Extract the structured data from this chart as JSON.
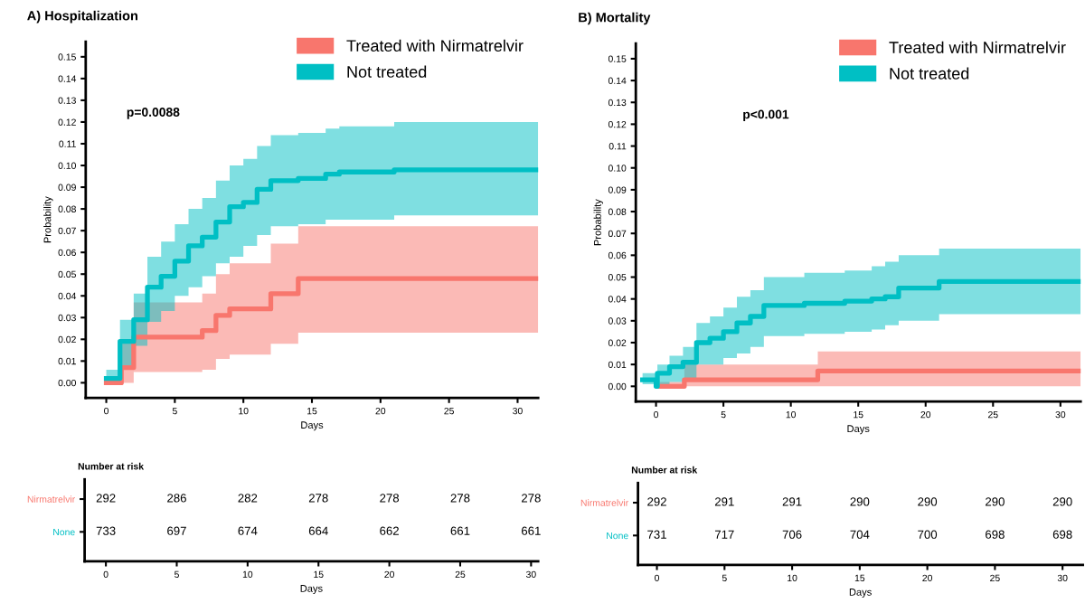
{
  "chart_data": [
    {
      "type": "step",
      "title": "A) Hospitalization",
      "xlabel": "Days",
      "ylabel": "Probability",
      "annotations": [
        "p=0.0088"
      ],
      "legend": "top right",
      "xlim": [
        -1.5,
        31.5
      ],
      "xticks": [
        0,
        5,
        10,
        15,
        20,
        25,
        30
      ],
      "ylim": [
        -0.007,
        0.157
      ],
      "yticks": [
        {
          "value": 0,
          "label": "0.00"
        },
        {
          "value": 0.01,
          "label": "0.01"
        },
        {
          "value": 0.02,
          "label": "0.02"
        },
        {
          "value": 0.03,
          "label": "0.03"
        },
        {
          "value": 0.04,
          "label": "0.04"
        },
        {
          "value": 0.05,
          "label": "0.05"
        },
        {
          "value": 0.06,
          "label": "0.06"
        },
        {
          "value": 0.07,
          "label": "0.07"
        },
        {
          "value": 0.08,
          "label": "0.08"
        },
        {
          "value": 0.09,
          "label": "0.09"
        },
        {
          "value": 0.1,
          "label": "0.10"
        },
        {
          "value": 0.11,
          "label": "0.11"
        },
        {
          "value": 0.12,
          "label": "0.12"
        },
        {
          "value": 0.13,
          "label": "0.13"
        },
        {
          "value": 0.14,
          "label": "0.14"
        },
        {
          "value": 0.15,
          "label": "0.15"
        }
      ],
      "series": [
        {
          "name": "Treated with Nirmatrelvir",
          "color": "#f8766d",
          "x": [
            0,
            1.1,
            2,
            7,
            8,
            9,
            12,
            14,
            31.5
          ],
          "values": [
            0,
            0.007,
            0.021,
            0.024,
            0.031,
            0.034,
            0.041,
            0.048,
            0.048
          ],
          "lower": [
            0,
            0,
            0.005,
            0.006,
            0.011,
            0.013,
            0.018,
            0.023,
            0.023
          ],
          "upper": [
            0.001,
            0.019,
            0.037,
            0.041,
            0.05,
            0.055,
            0.064,
            0.072,
            0.072
          ]
        },
        {
          "name": "Not treated",
          "color": "#00bfc4",
          "x": [
            0,
            1,
            2,
            3,
            4,
            5,
            6,
            7,
            8,
            9,
            10,
            11,
            12,
            14,
            16,
            17,
            21,
            31.5
          ],
          "values": [
            0.002,
            0.019,
            0.029,
            0.044,
            0.049,
            0.056,
            0.063,
            0.067,
            0.074,
            0.081,
            0.083,
            0.089,
            0.093,
            0.094,
            0.096,
            0.097,
            0.098,
            0.098
          ],
          "lower": [
            0,
            0.008,
            0.017,
            0.028,
            0.033,
            0.04,
            0.044,
            0.049,
            0.055,
            0.058,
            0.063,
            0.068,
            0.072,
            0.073,
            0.075,
            0.075,
            0.077,
            0.077
          ],
          "upper": [
            0.006,
            0.029,
            0.041,
            0.058,
            0.065,
            0.073,
            0.08,
            0.085,
            0.093,
            0.1,
            0.103,
            0.109,
            0.114,
            0.115,
            0.117,
            0.118,
            0.12,
            0.12
          ]
        }
      ]
    },
    {
      "type": "step",
      "title": "B) Mortality",
      "xlabel": "Days",
      "ylabel": "Probability",
      "annotations": [
        "p<0.001"
      ],
      "legend": "top right",
      "xlim": [
        -1.5,
        31.5
      ],
      "xticks": [
        0,
        5,
        10,
        15,
        20,
        25,
        30
      ],
      "ylim": [
        -0.007,
        0.157
      ],
      "yticks": [
        {
          "value": 0,
          "label": "0.00"
        },
        {
          "value": 0.01,
          "label": "0.01"
        },
        {
          "value": 0.02,
          "label": "0.02"
        },
        {
          "value": 0.03,
          "label": "0.03"
        },
        {
          "value": 0.04,
          "label": "0.04"
        },
        {
          "value": 0.05,
          "label": "0.05"
        },
        {
          "value": 0.06,
          "label": "0.06"
        },
        {
          "value": 0.07,
          "label": "0.07"
        },
        {
          "value": 0.08,
          "label": "0.08"
        },
        {
          "value": 0.09,
          "label": "0.09"
        },
        {
          "value": 0.1,
          "label": "0.10"
        },
        {
          "value": 0.11,
          "label": "0.11"
        },
        {
          "value": 0.12,
          "label": "0.12"
        },
        {
          "value": 0.13,
          "label": "0.13"
        },
        {
          "value": 0.14,
          "label": "0.14"
        },
        {
          "value": 0.15,
          "label": "0.15"
        }
      ],
      "series": [
        {
          "name": "Treated with Nirmatrelvir",
          "color": "#f8766d",
          "x": [
            0.25,
            2.1,
            12,
            31.5
          ],
          "values": [
            0,
            0.003,
            0.007,
            0.007
          ],
          "lower": [
            0,
            0,
            0,
            0
          ],
          "upper": [
            0.002,
            0.01,
            0.016,
            0.016
          ]
        },
        {
          "name": "Not treated",
          "color": "#00bfc4",
          "x": [
            -1,
            0,
            0.1,
            1,
            2,
            3,
            4,
            5,
            6,
            7,
            8,
            11,
            14,
            16,
            17,
            18,
            21,
            31.5
          ],
          "values": [
            0.003,
            0,
            0.006,
            0.009,
            0.011,
            0.02,
            0.022,
            0.025,
            0.029,
            0.032,
            0.037,
            0.038,
            0.039,
            0.04,
            0.041,
            0.045,
            0.048,
            0.048
          ],
          "lower": [
            0.001,
            0,
            0,
            0.002,
            0.003,
            0.01,
            0.01,
            0.013,
            0.015,
            0.018,
            0.023,
            0.024,
            0.025,
            0.026,
            0.028,
            0.03,
            0.033,
            0.033
          ],
          "upper": [
            0.006,
            0.006,
            0.01,
            0.014,
            0.018,
            0.029,
            0.032,
            0.036,
            0.041,
            0.044,
            0.05,
            0.052,
            0.053,
            0.055,
            0.057,
            0.06,
            0.063,
            0.063
          ]
        }
      ]
    },
    {
      "type": "heatmap",
      "title": "Number at risk",
      "xlabel": "Days",
      "data_labels": true,
      "categories": [
        "0",
        "5",
        "10",
        "15",
        "20",
        "25",
        "30"
      ],
      "y_categories": [
        "Nirmatrelvir",
        "None"
      ],
      "cells": [
        [
          292,
          286,
          282,
          278,
          278,
          278,
          278
        ],
        [
          733,
          697,
          674,
          664,
          662,
          661,
          661
        ]
      ]
    },
    {
      "type": "heatmap",
      "title": "Number at risk",
      "xlabel": "Days",
      "data_labels": true,
      "categories": [
        "0",
        "5",
        "10",
        "15",
        "20",
        "25",
        "30"
      ],
      "y_categories": [
        "Nirmatrelvir",
        "None"
      ],
      "cells": [
        [
          292,
          291,
          291,
          290,
          290,
          290,
          290
        ],
        [
          731,
          717,
          706,
          704,
          700,
          698,
          698
        ]
      ]
    }
  ]
}
